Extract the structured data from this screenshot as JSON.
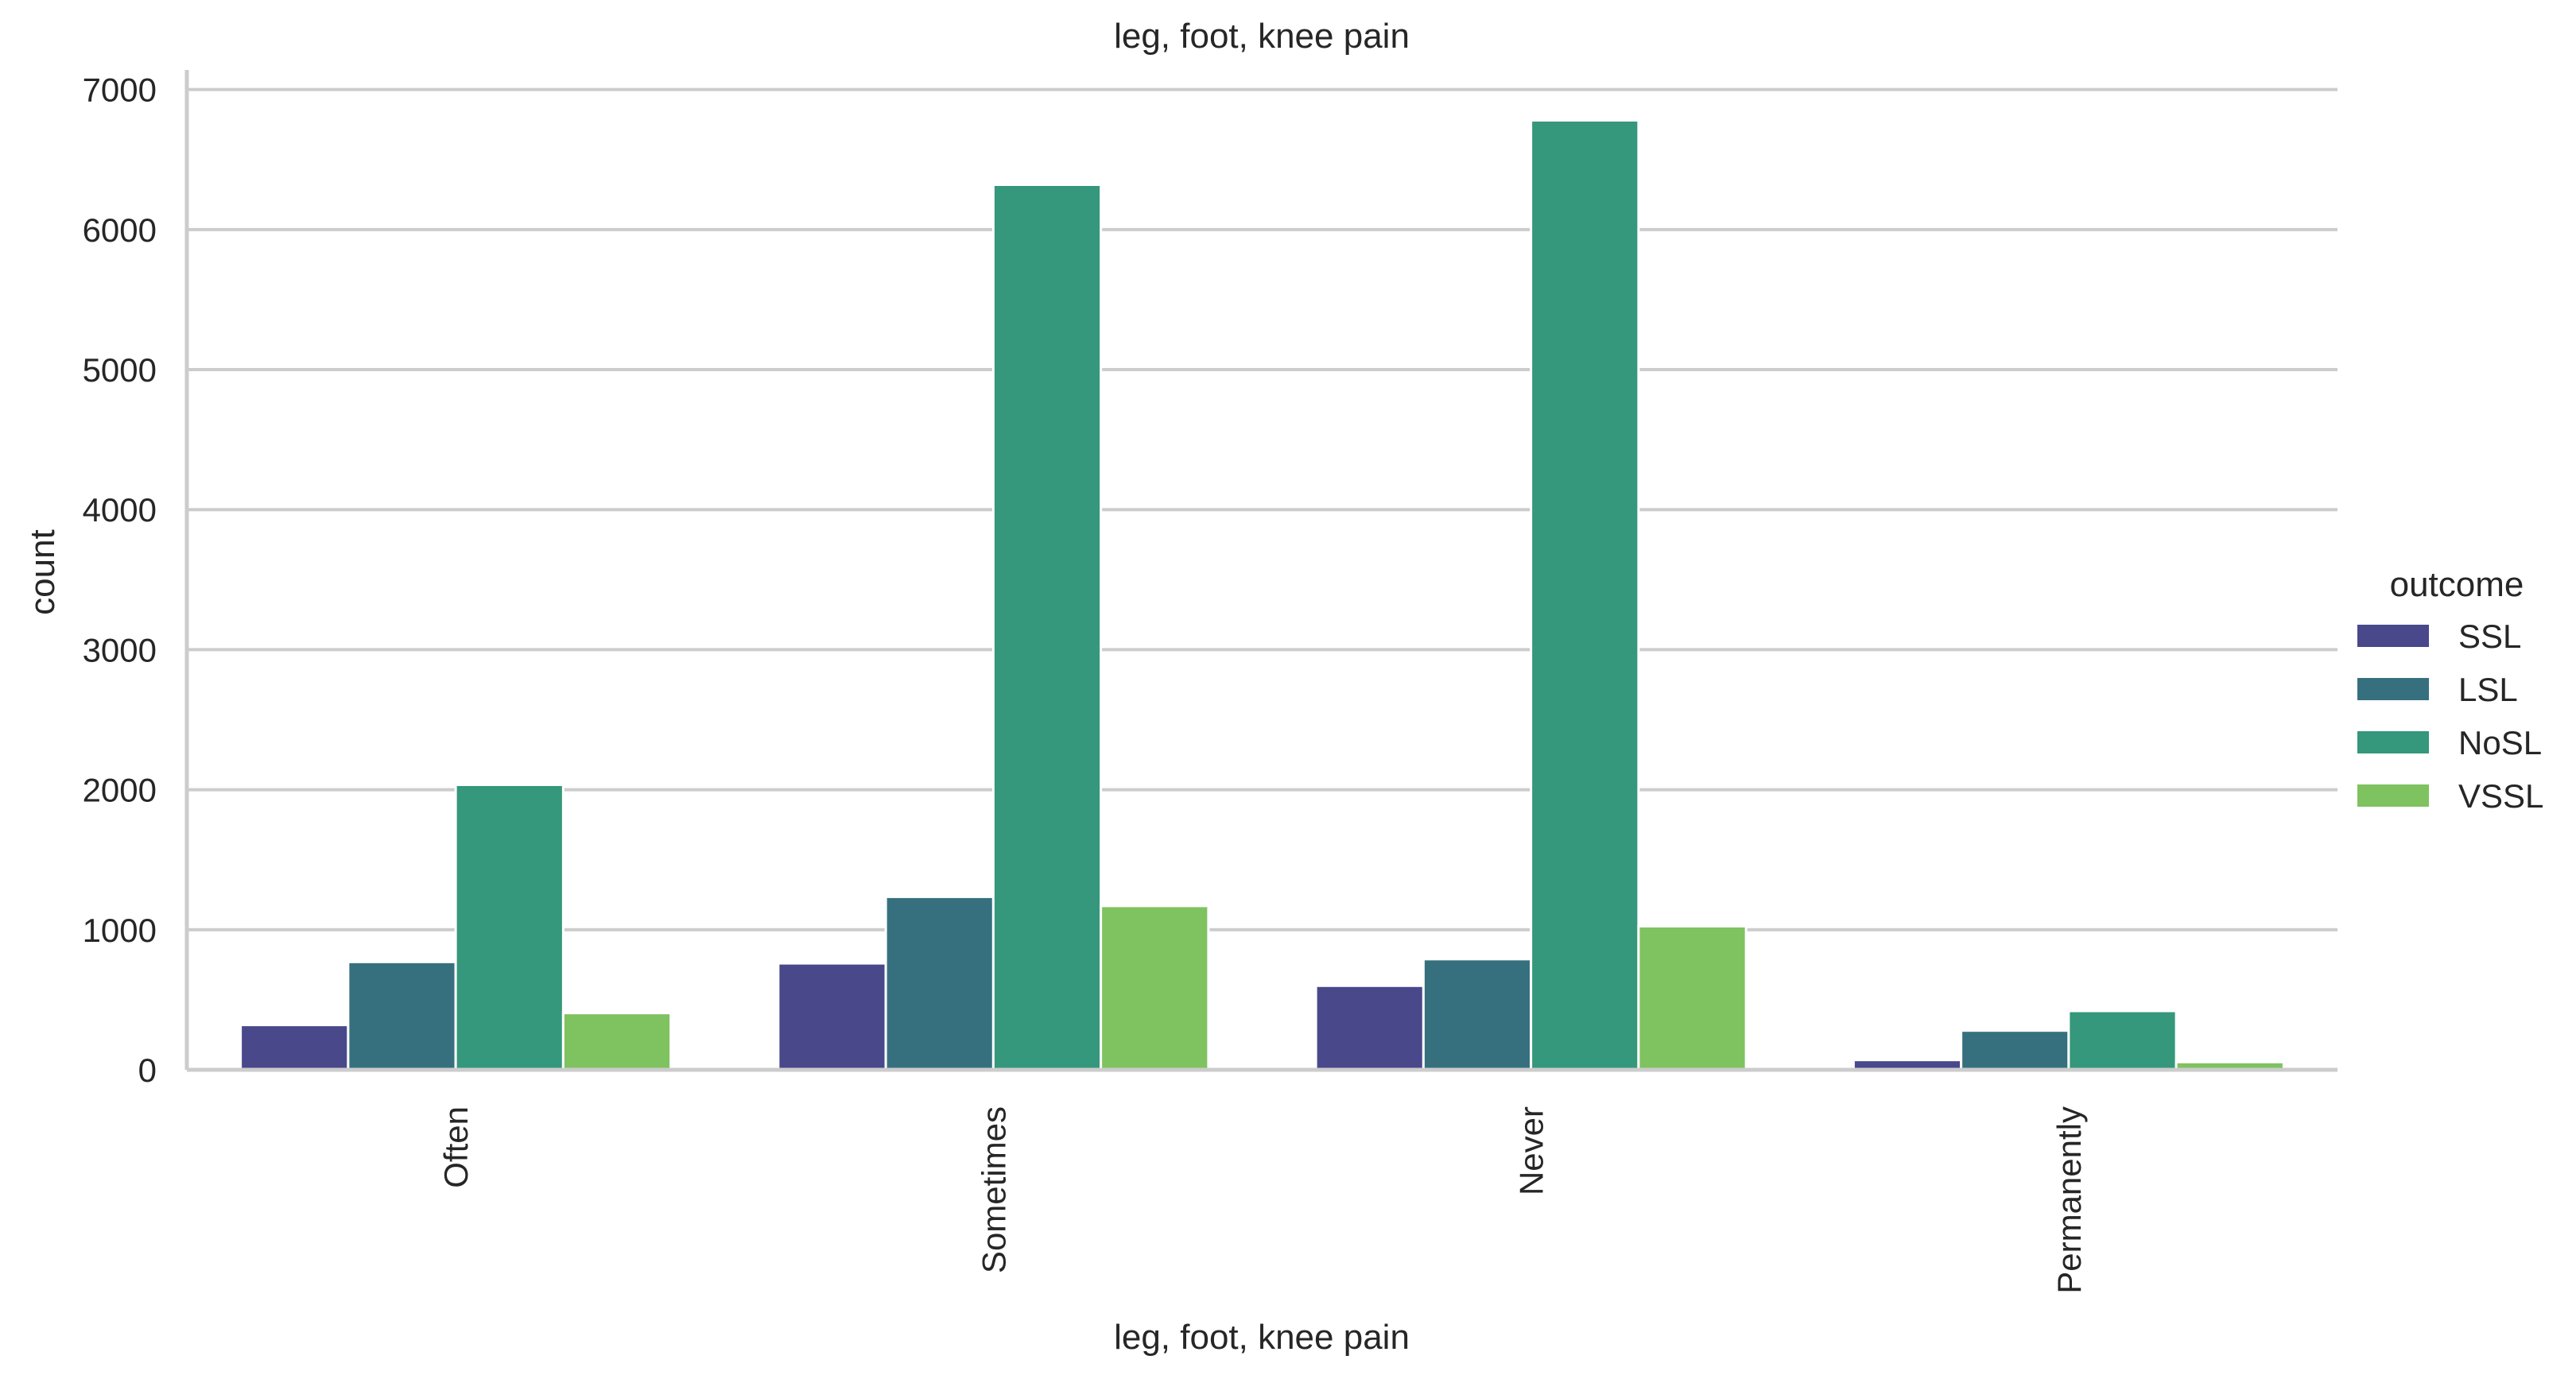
{
  "chart_data": {
    "type": "bar",
    "title": "leg, foot, knee pain",
    "xlabel": "leg, foot, knee pain",
    "ylabel": "count",
    "categories": [
      "Often",
      "Sometimes",
      "Never",
      "Permanently"
    ],
    "yticks": [
      0,
      1000,
      2000,
      3000,
      4000,
      5000,
      6000,
      7000
    ],
    "ylim": [
      0,
      7140
    ],
    "grid": true,
    "legend": {
      "title": "outcome",
      "placement": "right"
    },
    "series": [
      {
        "name": "SSL",
        "color": "#48488b",
        "values": [
          320,
          760,
          600,
          70
        ]
      },
      {
        "name": "LSL",
        "color": "#36707f",
        "values": [
          770,
          1235,
          790,
          280
        ]
      },
      {
        "name": "NoSL",
        "color": "#35977b",
        "values": [
          2035,
          6320,
          6780,
          420
        ]
      },
      {
        "name": "VSSL",
        "color": "#7fc260",
        "values": [
          405,
          1170,
          1025,
          55
        ]
      }
    ]
  }
}
